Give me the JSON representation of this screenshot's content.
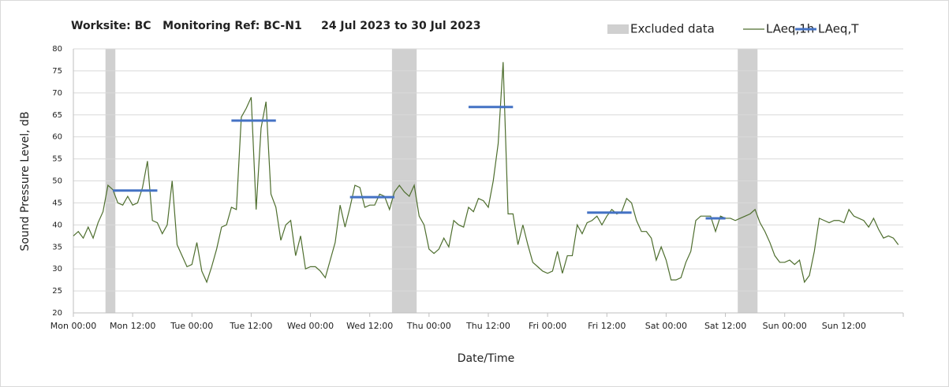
{
  "chart_data": {
    "type": "line",
    "title": "Worksite: BC   Monitoring Ref: BC-N1     24 Jul 2023 to 30 Jul 2023",
    "xlabel": "Date/Time",
    "ylabel": "Sound Pressure Level, dB",
    "xlim": [
      0,
      168
    ],
    "ylim": [
      20,
      80
    ],
    "yticks": [
      20,
      25,
      30,
      35,
      40,
      45,
      50,
      55,
      60,
      65,
      70,
      75,
      80
    ],
    "xticks": [
      {
        "value": 0,
        "label": "Mon 00:00"
      },
      {
        "value": 12,
        "label": "Mon 12:00"
      },
      {
        "value": 24,
        "label": "Tue 00:00"
      },
      {
        "value": 36,
        "label": "Tue 12:00"
      },
      {
        "value": 48,
        "label": "Wed 00:00"
      },
      {
        "value": 60,
        "label": "Wed 12:00"
      },
      {
        "value": 72,
        "label": "Thu 00:00"
      },
      {
        "value": 84,
        "label": "Thu 12:00"
      },
      {
        "value": 96,
        "label": "Fri 00:00"
      },
      {
        "value": 108,
        "label": "Fri 12:00"
      },
      {
        "value": 120,
        "label": "Sat 00:00"
      },
      {
        "value": 132,
        "label": "Sat 12:00"
      },
      {
        "value": 144,
        "label": "Sun 00:00"
      },
      {
        "value": 156,
        "label": "Sun 12:00"
      }
    ],
    "grid": true,
    "excluded": {
      "name": "Excluded data",
      "color": "#d0d0d0",
      "ranges": [
        [
          6.5,
          8.5
        ],
        [
          64.5,
          69.5
        ],
        [
          134.5,
          138.5
        ]
      ]
    },
    "x": [
      0,
      1,
      2,
      3,
      4,
      5,
      6,
      7,
      8,
      9,
      10,
      11,
      12,
      13,
      14,
      15,
      16,
      17,
      18,
      19,
      20,
      21,
      22,
      23,
      24,
      25,
      26,
      27,
      28,
      29,
      30,
      31,
      32,
      33,
      34,
      35,
      36,
      37,
      38,
      39,
      40,
      41,
      42,
      43,
      44,
      45,
      46,
      47,
      48,
      49,
      50,
      51,
      52,
      53,
      54,
      55,
      56,
      57,
      58,
      59,
      60,
      61,
      62,
      63,
      64,
      65,
      66,
      67,
      68,
      69,
      70,
      71,
      72,
      73,
      74,
      75,
      76,
      77,
      78,
      79,
      80,
      81,
      82,
      83,
      84,
      85,
      86,
      87,
      88,
      89,
      90,
      91,
      92,
      93,
      94,
      95,
      96,
      97,
      98,
      99,
      100,
      101,
      102,
      103,
      104,
      105,
      106,
      107,
      108,
      109,
      110,
      111,
      112,
      113,
      114,
      115,
      116,
      117,
      118,
      119,
      120,
      121,
      122,
      123,
      124,
      125,
      126,
      127,
      128,
      129,
      130,
      131,
      132,
      133,
      134,
      135,
      136,
      137,
      138,
      139,
      140,
      141,
      142,
      143,
      144,
      145,
      146,
      147,
      148,
      149,
      150,
      151,
      152,
      153,
      154,
      155,
      156,
      157,
      158,
      159,
      160,
      161,
      162,
      163,
      164,
      165,
      166,
      167
    ],
    "series": [
      {
        "name": "LAeq,1h",
        "color": "#4e6e2e",
        "values": [
          37.5,
          38.5,
          37,
          39.5,
          37,
          40.5,
          43,
          49,
          48,
          45,
          44.5,
          46.5,
          44.5,
          45,
          48.5,
          54.5,
          41,
          40.5,
          38,
          40,
          50,
          35.5,
          33,
          30.5,
          31,
          36,
          29.5,
          27,
          30.5,
          34.5,
          39.5,
          40,
          44,
          43.5,
          64.5,
          66.5,
          69,
          43.5,
          62,
          68,
          47,
          44,
          36.5,
          40,
          41,
          33,
          37.5,
          30,
          30.5,
          30.5,
          29.5,
          28,
          32,
          36,
          44.5,
          39.5,
          44,
          49,
          48.5,
          44,
          44.5,
          44.5,
          47,
          46.5,
          43.5,
          47.5,
          49,
          47.5,
          46.5,
          49,
          42,
          40,
          34.5,
          33.5,
          34.5,
          37,
          35,
          41,
          40,
          39.5,
          44,
          43,
          46,
          45.5,
          44,
          50,
          58.5,
          77,
          42.5,
          42.5,
          35.5,
          40,
          35.5,
          31.5,
          30.5,
          29.5,
          29,
          29.5,
          34,
          29,
          33,
          33,
          40,
          38,
          40.5,
          41,
          42,
          40,
          42,
          43.5,
          42.5,
          43,
          46,
          45,
          41,
          38.5,
          38.5,
          37,
          32,
          35,
          32,
          27.5,
          27.5,
          28,
          31.5,
          34,
          41,
          42,
          42,
          42,
          38.5,
          42,
          41.5,
          41.5,
          41,
          41.5,
          42,
          42.5,
          43.5,
          40.5,
          38.5,
          36,
          33,
          31.5,
          31.5,
          32,
          31,
          32,
          27,
          28.5,
          34,
          41.5,
          41,
          40.5,
          41,
          41,
          40.5,
          43.5,
          42,
          41.5,
          41,
          39.5,
          41.5,
          39,
          37,
          37.5,
          37,
          35.5
        ]
      },
      {
        "name": "LAeq,T",
        "color": "#4472c4",
        "segments": [
          {
            "start": 8,
            "end": 17,
            "value": 47.8
          },
          {
            "start": 32,
            "end": 41,
            "value": 63.7
          },
          {
            "start": 56,
            "end": 65,
            "value": 46.3
          },
          {
            "start": 80,
            "end": 89,
            "value": 66.8
          },
          {
            "start": 104,
            "end": 113,
            "value": 42.8
          },
          {
            "start": 128,
            "end": 132,
            "value": 41.5
          }
        ]
      }
    ]
  }
}
